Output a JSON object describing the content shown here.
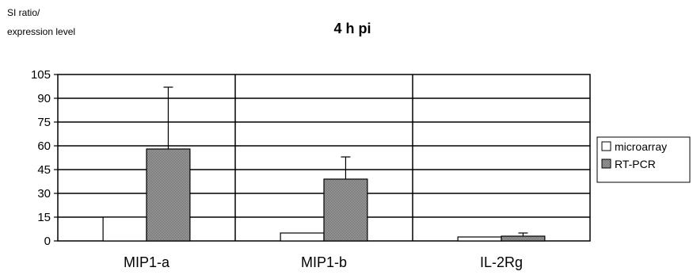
{
  "chart_data": {
    "type": "bar",
    "title": "4 h pi",
    "ylabel_line1": "SI ratio/",
    "ylabel_line2": "expression level",
    "categories": [
      "MIP1-a",
      "MIP1-b",
      "IL-2Rg"
    ],
    "series": [
      {
        "name": "microarray",
        "values": [
          15,
          5,
          2.5
        ],
        "errors": [
          0,
          0,
          0
        ],
        "fill": "#ffffff"
      },
      {
        "name": "RT-PCR",
        "values": [
          58,
          39,
          3
        ],
        "errors": [
          39,
          14,
          2
        ],
        "fill": "#8c8c8c"
      }
    ],
    "ylim": [
      0,
      105
    ],
    "yticks": [
      0,
      15,
      30,
      45,
      60,
      75,
      90,
      105
    ],
    "grid": true,
    "legend_position": "right"
  }
}
